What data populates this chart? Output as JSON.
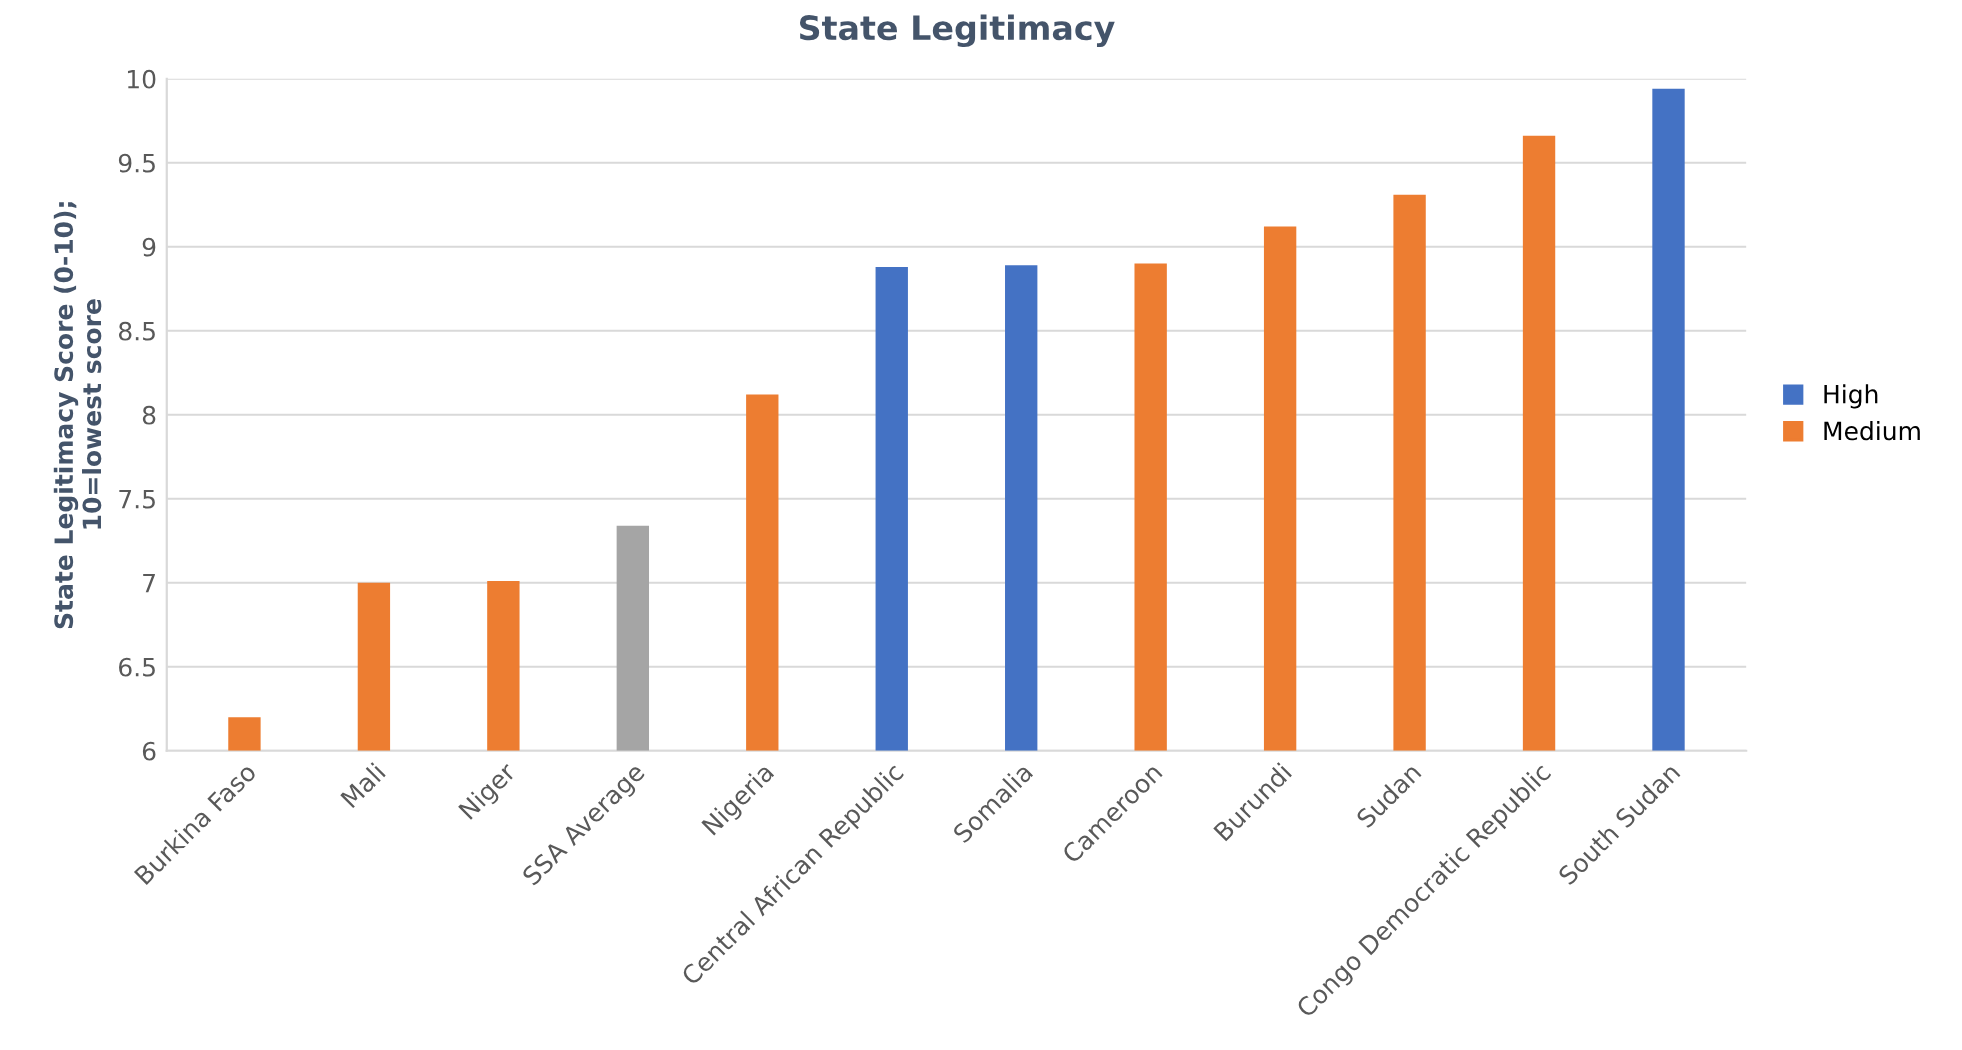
{
  "chart_data": {
    "type": "bar",
    "title": "State Legitimacy",
    "ylabel": "State Legitimacy Score (0-10);\n10=lowest score",
    "categories": [
      "Burkina Faso",
      "Mali",
      "Niger",
      "SSA Average",
      "Nigeria",
      "Central African Republic",
      "Somalia",
      "Cameroon",
      "Burundi",
      "Sudan",
      "Congo Democratic Republic",
      "South Sudan"
    ],
    "series": [
      {
        "name": "High",
        "color": "#4472c4",
        "values": [
          null,
          null,
          null,
          null,
          null,
          8.88,
          8.89,
          null,
          null,
          null,
          null,
          9.94
        ]
      },
      {
        "name": "Medium",
        "color": "#ed7d31",
        "values": [
          6.2,
          7.0,
          7.01,
          null,
          8.12,
          null,
          null,
          8.9,
          9.12,
          9.31,
          9.66,
          null
        ]
      },
      {
        "color": "#a5a5a5",
        "values": [
          null,
          null,
          null,
          7.34,
          null,
          null,
          null,
          null,
          null,
          null,
          null,
          null
        ]
      }
    ],
    "ylim": [
      6,
      10
    ],
    "yticks": [
      6,
      6.5,
      7,
      7.5,
      8,
      8.5,
      9,
      9.5,
      10
    ],
    "grid": "y",
    "legend": "right"
  }
}
